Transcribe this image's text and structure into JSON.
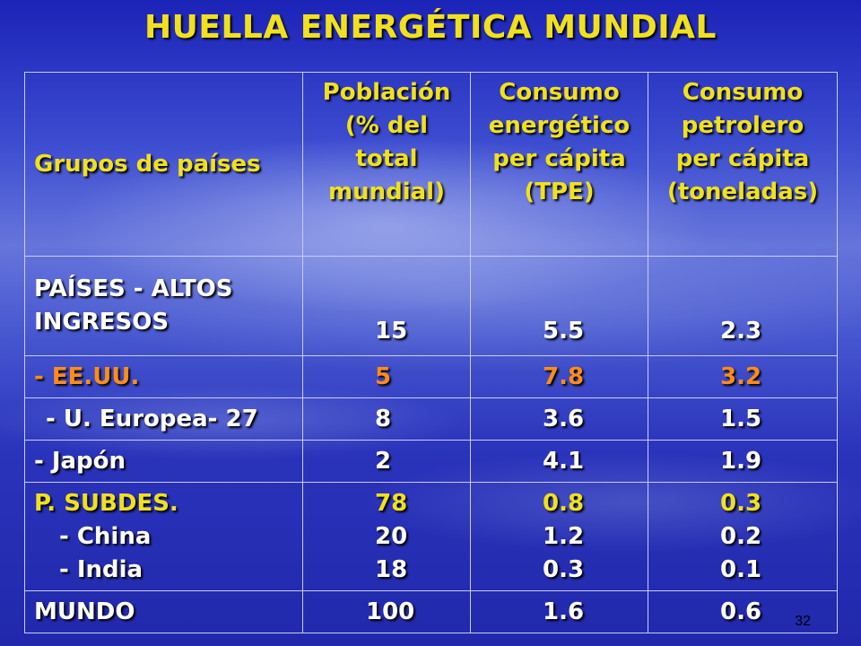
{
  "title": "HUELLA ENERGÉTICA MUNDIAL",
  "page_number": "32",
  "headers": {
    "group": "Grupos de países",
    "population": [
      "Población",
      "(% del",
      "total",
      "mundial)"
    ],
    "energy": [
      "Consumo",
      "energético",
      "per cápita",
      "(TPE)"
    ],
    "oil": [
      "Consumo",
      "petrolero",
      "per cápita",
      "(toneladas)"
    ]
  },
  "rows": {
    "high_income": {
      "label": [
        "PAÍSES -  ALTOS",
        "INGRESOS"
      ],
      "population": "15",
      "energy": "5.5",
      "oil": "2.3"
    },
    "usa": {
      "label": "- EE.UU.",
      "population": "5",
      "energy": "7.8",
      "oil": "3.2"
    },
    "eu": {
      "label": " - U. Europea- 27",
      "population": "8",
      "energy": "3.6",
      "oil": "1.5"
    },
    "japan": {
      "label": "- Japón",
      "population": "2",
      "energy": "4.1",
      "oil": "1.9"
    },
    "developing": {
      "label": "P. SUBDES.",
      "population": "78",
      "energy": "0.8",
      "oil": "0.3",
      "china": {
        "label": "- China",
        "population": "20",
        "energy": "1.2",
        "oil": "0.2"
      },
      "india": {
        "label": "- India",
        "population": "18",
        "energy": "0.3",
        "oil": "0.1"
      }
    },
    "world": {
      "label": "MUNDO",
      "population": "100",
      "energy": "1.6",
      "oil": "0.6"
    }
  },
  "colors": {
    "title": "#f0e020",
    "highlight": "#ff8c1a",
    "text": "#ffffff"
  }
}
